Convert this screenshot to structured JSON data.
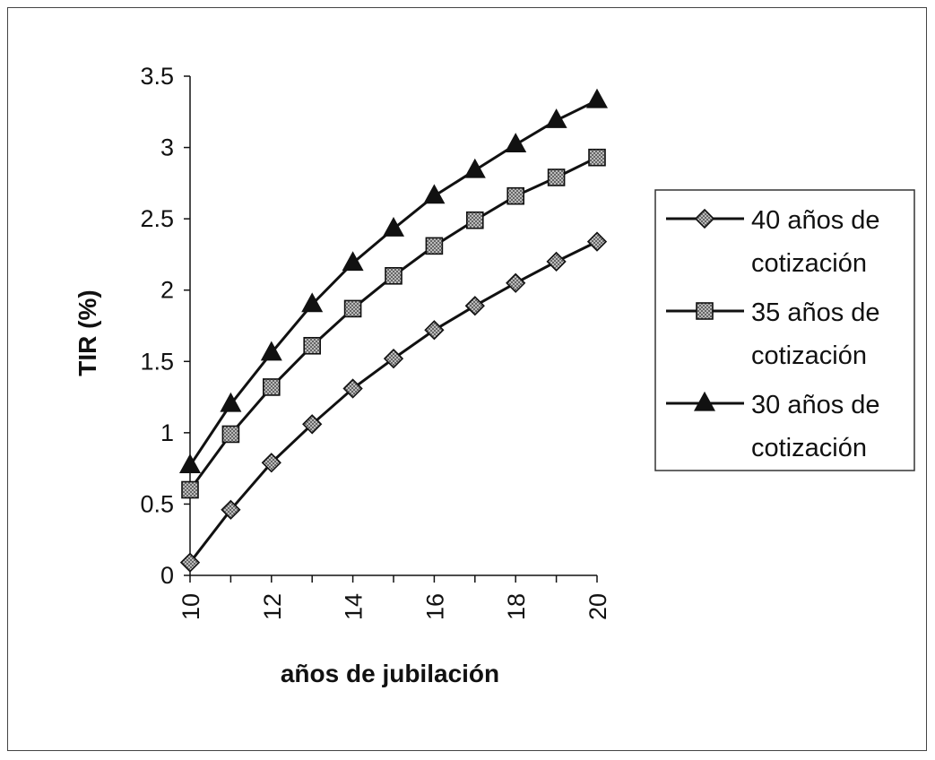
{
  "chart_data": {
    "type": "line",
    "title": "",
    "xlabel": "años de jubilación",
    "ylabel": "TIR (%)",
    "x": [
      10,
      11,
      12,
      13,
      14,
      15,
      16,
      17,
      18,
      19,
      20
    ],
    "xticks": [
      10,
      12,
      14,
      16,
      18,
      20
    ],
    "yticks": [
      "0",
      "0.5",
      "1",
      "1.5",
      "2",
      "2.5",
      "3",
      "3.5"
    ],
    "xlim": [
      10,
      20
    ],
    "ylim": [
      0,
      3.5
    ],
    "grid": false,
    "legend_position": "right",
    "series": [
      {
        "name": "40 años de cotización",
        "marker": "diamond",
        "legend_lines": [
          "40 años de",
          "cotización"
        ],
        "values": [
          0.09,
          0.46,
          0.79,
          1.06,
          1.31,
          1.52,
          1.72,
          1.89,
          2.05,
          2.2,
          2.34
        ]
      },
      {
        "name": "35 años de cotización",
        "marker": "square",
        "legend_lines": [
          "35 años de",
          "cotización"
        ],
        "values": [
          0.6,
          0.99,
          1.32,
          1.61,
          1.87,
          2.1,
          2.31,
          2.49,
          2.66,
          2.79,
          2.93
        ]
      },
      {
        "name": "30 años de cotización",
        "marker": "triangle",
        "legend_lines": [
          "30 años de",
          "cotización"
        ],
        "values": [
          0.77,
          1.2,
          1.56,
          1.9,
          2.19,
          2.43,
          2.66,
          2.84,
          3.02,
          3.19,
          3.33
        ]
      }
    ]
  }
}
